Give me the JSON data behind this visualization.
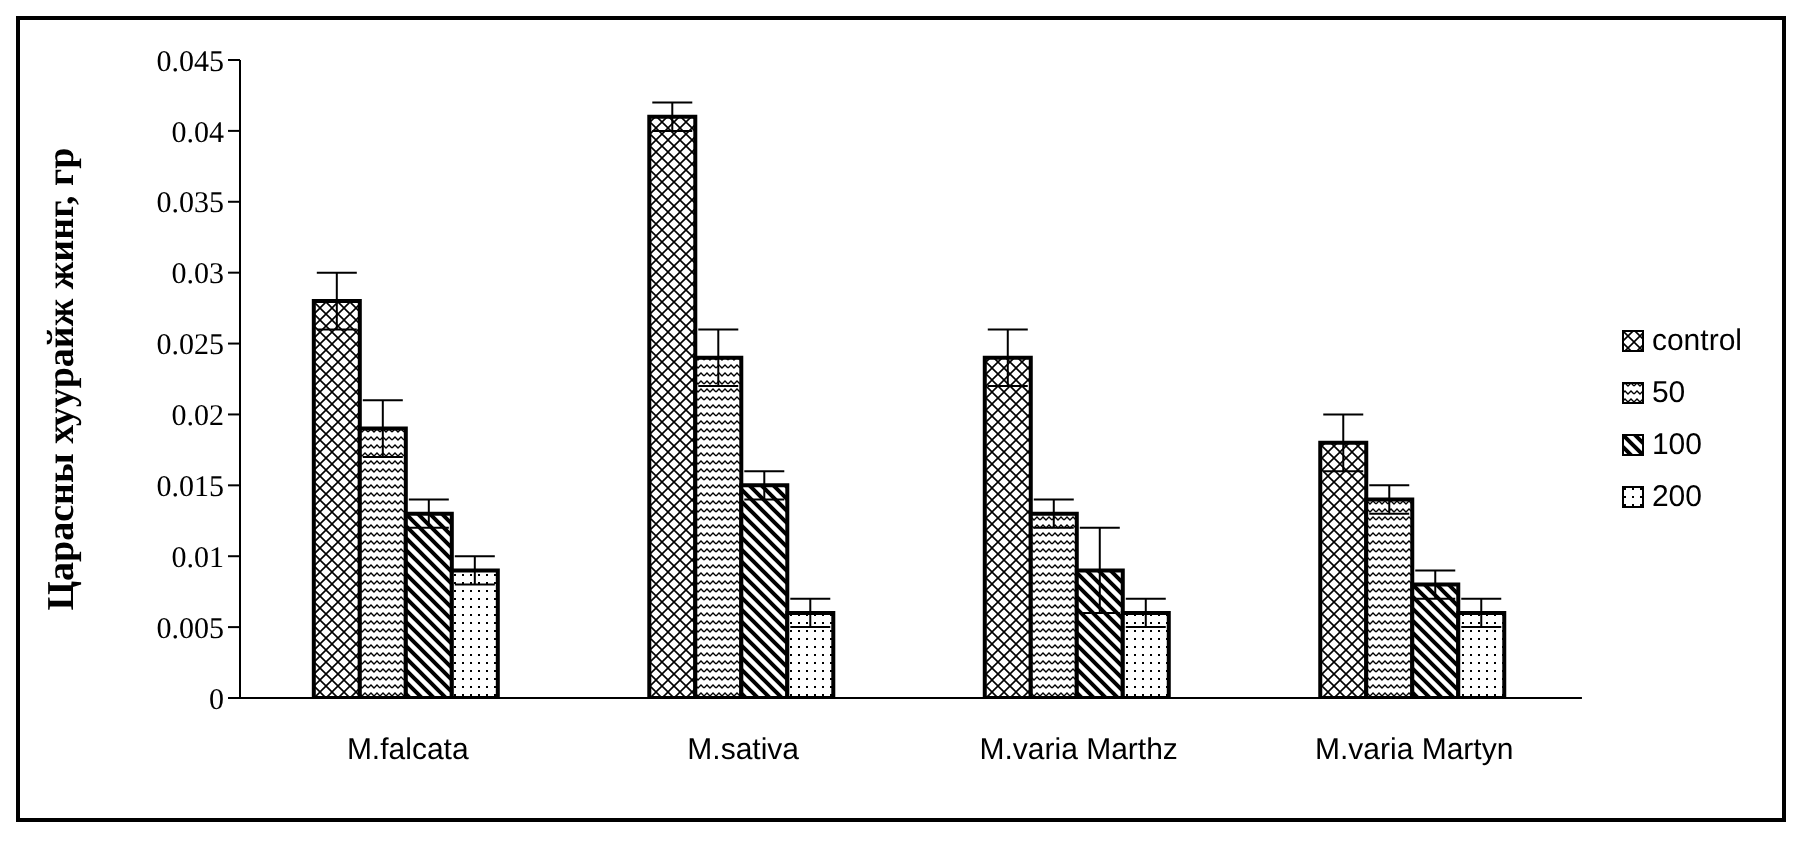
{
  "chart_data": {
    "type": "bar",
    "ylabel": "Царасны хуурайж жинг, гр",
    "categories": [
      "M.falcata",
      "M.sativa",
      "M.varia Marthz",
      "M.varia Martyn"
    ],
    "series": [
      {
        "name": "control",
        "color": "#000000",
        "values": [
          0.028,
          0.041,
          0.024,
          0.018
        ],
        "errors": [
          0.002,
          0.001,
          0.002,
          0.002
        ]
      },
      {
        "name": "50",
        "color": "#000000",
        "values": [
          0.019,
          0.024,
          0.013,
          0.014
        ],
        "errors": [
          0.002,
          0.002,
          0.001,
          0.001
        ]
      },
      {
        "name": "100",
        "color": "#000000",
        "values": [
          0.013,
          0.015,
          0.009,
          0.008
        ],
        "errors": [
          0.001,
          0.001,
          0.003,
          0.001
        ]
      },
      {
        "name": "200",
        "color": "#000000",
        "values": [
          0.009,
          0.006,
          0.006,
          0.006
        ],
        "errors": [
          0.001,
          0.001,
          0.001,
          0.001
        ]
      }
    ],
    "ylim": [
      0,
      0.045
    ],
    "yticks": [
      0,
      0.005,
      0.01,
      0.015,
      0.02,
      0.025,
      0.03,
      0.035,
      0.04,
      0.045
    ],
    "grid": false,
    "legend": "right"
  }
}
